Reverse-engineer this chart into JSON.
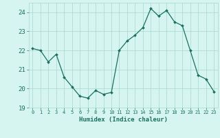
{
  "x": [
    0,
    1,
    2,
    3,
    4,
    5,
    6,
    7,
    8,
    9,
    10,
    11,
    12,
    13,
    14,
    15,
    16,
    17,
    18,
    19,
    20,
    21,
    22,
    23
  ],
  "y": [
    22.1,
    22.0,
    21.4,
    21.8,
    20.6,
    20.1,
    19.6,
    19.5,
    19.9,
    19.7,
    19.8,
    22.0,
    22.5,
    22.8,
    23.2,
    24.2,
    23.8,
    24.1,
    23.5,
    23.3,
    22.0,
    20.7,
    20.5,
    19.85
  ],
  "xlabel": "Humidex (Indice chaleur)",
  "ylim": [
    19,
    24.5
  ],
  "xlim": [
    -0.5,
    23.5
  ],
  "yticks": [
    19,
    20,
    21,
    22,
    23,
    24
  ],
  "xtick_labels": [
    "0",
    "1",
    "2",
    "3",
    "4",
    "5",
    "6",
    "7",
    "8",
    "9",
    "10",
    "11",
    "12",
    "13",
    "14",
    "15",
    "16",
    "17",
    "18",
    "19",
    "20",
    "21",
    "22",
    "23"
  ],
  "line_color": "#1a7060",
  "marker": "D",
  "marker_size": 2,
  "bg_color": "#d6f5f0",
  "grid_color": "#a8d8cc",
  "xlabel_fontsize": 6.5,
  "ytick_fontsize": 6.5,
  "xtick_fontsize": 5.0
}
